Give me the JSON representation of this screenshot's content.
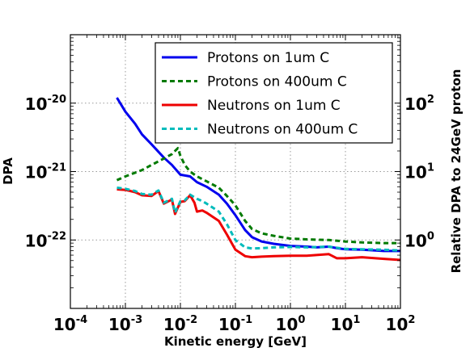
{
  "chart_data": {
    "type": "line",
    "xlabel": "Kinetic energy [GeV]",
    "ylabel": "DPA",
    "ylabel_right": "Relative DPA to 24GeV proton",
    "xscale": "log",
    "yscale": "log",
    "xlim": [
      0.0001,
      100
    ],
    "ylim": [
      1e-23,
      1e-19
    ],
    "ylim_right": [
      0.1,
      1000
    ],
    "x_tick_labels": [
      {
        "value": 0.0001,
        "base": "10",
        "exp": "-4"
      },
      {
        "value": 0.001,
        "base": "10",
        "exp": "-3"
      },
      {
        "value": 0.01,
        "base": "10",
        "exp": "-2"
      },
      {
        "value": 0.1,
        "base": "10",
        "exp": "-1"
      },
      {
        "value": 1,
        "base": "10",
        "exp": "0"
      },
      {
        "value": 10,
        "base": "10",
        "exp": "1"
      },
      {
        "value": 100,
        "base": "10",
        "exp": "2"
      }
    ],
    "y_tick_labels": [
      {
        "value": 1e-20,
        "base": "10",
        "exp": "-20"
      },
      {
        "value": 1e-21,
        "base": "10",
        "exp": "-21"
      },
      {
        "value": 1e-22,
        "base": "10",
        "exp": "-22"
      }
    ],
    "y_right_tick_labels": [
      {
        "value": 100,
        "base": "10",
        "exp": "2"
      },
      {
        "value": 10,
        "base": "10",
        "exp": "1"
      },
      {
        "value": 1,
        "base": "10",
        "exp": "0"
      }
    ],
    "grid": true,
    "legend_position": "top-right",
    "series": [
      {
        "name": "Protons on 1um C",
        "color": "#0000ee",
        "dash": "solid",
        "x": [
          0.0007,
          0.001,
          0.0015,
          0.002,
          0.003,
          0.005,
          0.007,
          0.01,
          0.015,
          0.02,
          0.03,
          0.05,
          0.07,
          0.1,
          0.15,
          0.2,
          0.3,
          0.5,
          1,
          2,
          3,
          5,
          7,
          10,
          20,
          50,
          100
        ],
        "values": [
          1.2e-20,
          7.5e-21,
          5e-21,
          3.5e-21,
          2.5e-21,
          1.6e-21,
          1.25e-21,
          9e-22,
          8.5e-22,
          7e-22,
          6e-22,
          4.6e-22,
          3.4e-22,
          2.3e-22,
          1.4e-22,
          1.1e-22,
          9.5e-23,
          8.8e-23,
          8.2e-23,
          8e-23,
          7.8e-23,
          8e-23,
          7.6e-23,
          7.3e-23,
          7.2e-23,
          6.9e-23,
          6.9e-23
        ]
      },
      {
        "name": "Protons on 400um C",
        "color": "#007a00",
        "dash": "dashed",
        "x": [
          0.0007,
          0.001,
          0.002,
          0.003,
          0.005,
          0.007,
          0.009,
          0.01,
          0.012,
          0.015,
          0.02,
          0.03,
          0.05,
          0.07,
          0.1,
          0.15,
          0.2,
          0.3,
          0.5,
          1,
          2,
          5,
          10,
          20,
          50,
          100
        ],
        "values": [
          7.5e-22,
          8.5e-22,
          1.05e-21,
          1.25e-21,
          1.55e-21,
          1.8e-21,
          2.2e-21,
          1.7e-21,
          1.25e-21,
          1e-21,
          8.5e-22,
          7.2e-22,
          5.8e-22,
          4.4e-22,
          3.2e-22,
          1.9e-22,
          1.45e-22,
          1.25e-22,
          1.15e-22,
          1.05e-22,
          1.02e-22,
          1e-22,
          9.5e-23,
          9.2e-23,
          9e-23,
          9e-23
        ]
      },
      {
        "name": "Neutrons on 1um C",
        "color": "#ee0000",
        "dash": "solid",
        "x": [
          0.0007,
          0.001,
          0.0015,
          0.002,
          0.003,
          0.004,
          0.005,
          0.007,
          0.008,
          0.01,
          0.012,
          0.015,
          0.018,
          0.02,
          0.025,
          0.03,
          0.05,
          0.07,
          0.1,
          0.15,
          0.2,
          0.3,
          0.5,
          1,
          2,
          5,
          7,
          10,
          20,
          50,
          100
        ],
        "values": [
          5.5e-22,
          5.4e-22,
          5e-22,
          4.5e-22,
          4.4e-22,
          5.2e-22,
          3.4e-22,
          3.9e-22,
          2.4e-22,
          3.6e-22,
          3.7e-22,
          4.5e-22,
          3.5e-22,
          2.6e-22,
          2.7e-22,
          2.5e-22,
          1.9e-22,
          1.2e-22,
          7.2e-23,
          5.8e-23,
          5.6e-23,
          5.7e-23,
          5.8e-23,
          5.9e-23,
          5.9e-23,
          6.2e-23,
          5.4e-23,
          5.4e-23,
          5.6e-23,
          5.3e-23,
          5.1e-23
        ]
      },
      {
        "name": "Neutrons on 400um C",
        "color": "#00bbbb",
        "dash": "dashed",
        "x": [
          0.0007,
          0.001,
          0.0015,
          0.002,
          0.003,
          0.004,
          0.005,
          0.007,
          0.008,
          0.01,
          0.012,
          0.015,
          0.018,
          0.02,
          0.025,
          0.03,
          0.05,
          0.07,
          0.1,
          0.15,
          0.2,
          0.3,
          0.5,
          1,
          2,
          5,
          10,
          20,
          50,
          100
        ],
        "values": [
          5.8e-22,
          5.6e-22,
          5.2e-22,
          4.7e-22,
          4.6e-22,
          5.3e-22,
          3.5e-22,
          4e-22,
          2.5e-22,
          3.7e-22,
          3.8e-22,
          4.6e-22,
          4.2e-22,
          4e-22,
          3.7e-22,
          3.4e-22,
          2.6e-22,
          1.7e-22,
          1e-22,
          7.8e-23,
          7.5e-23,
          7.6e-23,
          7.8e-23,
          7.9e-23,
          7.8e-23,
          8e-23,
          7.4e-23,
          7.3e-23,
          7.2e-23,
          7e-23
        ]
      }
    ]
  }
}
